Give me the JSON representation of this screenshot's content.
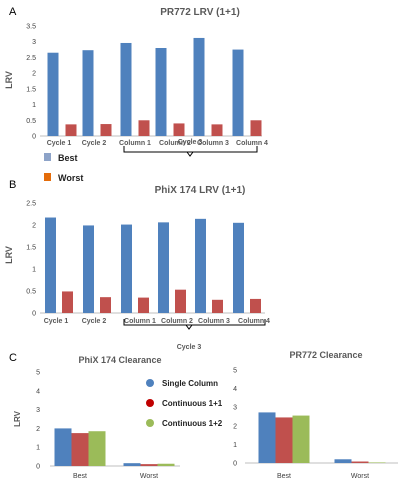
{
  "colors": {
    "blue": "#4F81BD",
    "red": "#C0504D",
    "green": "#9BBB59",
    "darkred": "#C00000",
    "legendBlue": "#8DA3C8",
    "legendOrange": "#E46C0A"
  },
  "panels": {
    "a": "A",
    "b": "B",
    "c": "C"
  },
  "legend_ab": {
    "best": "Best",
    "worst": "Worst"
  },
  "chart_data": [
    {
      "id": "A",
      "type": "bar",
      "title": "PR772 LRV (1+1)",
      "ylabel": "LRV",
      "ylim": [
        0,
        3.5
      ],
      "yticks": [
        "0",
        "0.5",
        "1",
        "1.5",
        "2",
        "2.5",
        "3",
        "3.5"
      ],
      "categories": [
        "Cycle 1",
        "Cycle 2",
        "Column 1",
        "Column 2",
        "Column 3",
        "Column 4"
      ],
      "group_label": "Cycle 3",
      "series": [
        {
          "name": "Best",
          "values": [
            2.65,
            2.73,
            2.96,
            2.8,
            3.12,
            2.75
          ]
        },
        {
          "name": "Worst",
          "values": [
            0.37,
            0.38,
            0.5,
            0.4,
            0.37,
            0.5
          ]
        }
      ]
    },
    {
      "id": "B",
      "type": "bar",
      "title": "PhiX 174 LRV (1+1)",
      "ylabel": "LRV",
      "ylim": [
        0,
        2.5
      ],
      "yticks": [
        "0",
        "0.5",
        "1",
        "1.5",
        "2",
        "2.5"
      ],
      "categories": [
        "Cycle 1",
        "Cycle 2",
        "Column 1",
        "Column 2",
        "Column 3",
        "Column 4"
      ],
      "group_label": "Cycle 3",
      "series": [
        {
          "name": "Best",
          "values": [
            2.17,
            1.99,
            2.01,
            2.06,
            2.14,
            2.05
          ]
        },
        {
          "name": "Worst",
          "values": [
            0.49,
            0.36,
            0.35,
            0.53,
            0.3,
            0.32
          ]
        }
      ]
    },
    {
      "id": "C1",
      "type": "bar",
      "title": "PhiX 174 Clearance",
      "ylabel": "LRV",
      "ylim": [
        0,
        5
      ],
      "yticks": [
        "0",
        "1",
        "2",
        "3",
        "4",
        "5"
      ],
      "categories": [
        "Best",
        "Worst"
      ],
      "series": [
        {
          "name": "Single Column",
          "values": [
            2.0,
            0.15
          ]
        },
        {
          "name": "Continuous 1+1",
          "values": [
            1.75,
            0.1
          ]
        },
        {
          "name": "Continuous 1+2",
          "values": [
            1.85,
            0.12
          ]
        }
      ]
    },
    {
      "id": "C2",
      "type": "bar",
      "title": "PR772 Clearance",
      "ylabel": "",
      "ylim": [
        0,
        5
      ],
      "yticks": [
        "0",
        "1",
        "2",
        "3",
        "4",
        "5"
      ],
      "categories": [
        "Best",
        "Worst"
      ],
      "series": [
        {
          "name": "Single Column",
          "values": [
            2.72,
            0.2
          ]
        },
        {
          "name": "Continuous 1+1",
          "values": [
            2.45,
            0.08
          ]
        },
        {
          "name": "Continuous 1+2",
          "values": [
            2.55,
            0.03
          ]
        }
      ]
    }
  ]
}
